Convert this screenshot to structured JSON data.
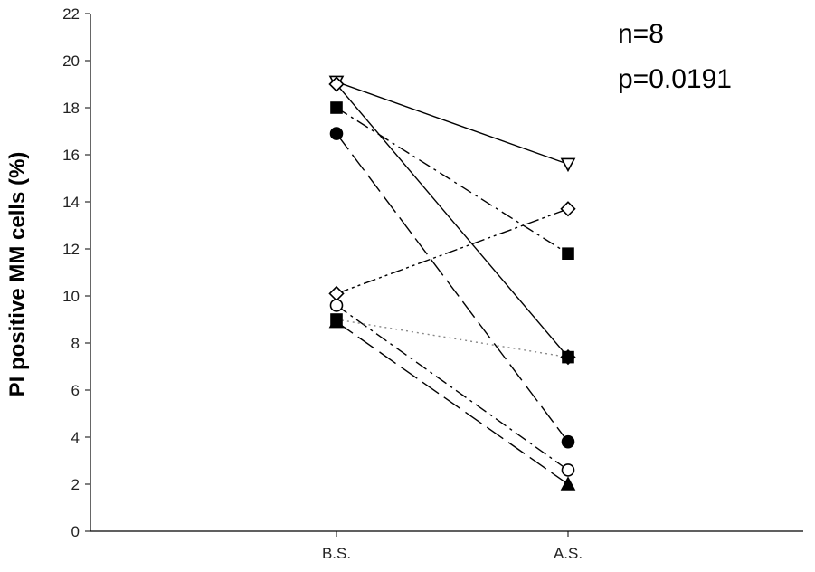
{
  "chart_data": {
    "type": "line",
    "ylabel": "PI positive MM cells (%)",
    "xlabel": "",
    "ylim": [
      0,
      22
    ],
    "yticks": [
      0,
      2,
      4,
      6,
      8,
      10,
      12,
      14,
      16,
      18,
      20,
      22
    ],
    "categories": [
      "B.S.",
      "A.S."
    ],
    "annotations": [
      "n=8",
      "p=0.0191"
    ],
    "grid": false,
    "series": [
      {
        "values": [
          19.1,
          15.6
        ],
        "marker": "triangle-down-open",
        "line": "solid"
      },
      {
        "values": [
          19.0,
          7.4
        ],
        "marker": "diamond-open",
        "line": "solid"
      },
      {
        "values": [
          18.0,
          11.8
        ],
        "marker": "square-filled",
        "line": "dash-dot"
      },
      {
        "values": [
          16.9,
          3.8
        ],
        "marker": "circle-filled",
        "line": "long-dash"
      },
      {
        "values": [
          10.1,
          13.7
        ],
        "marker": "diamond-open",
        "line": "dash-dot-dot"
      },
      {
        "values": [
          9.6,
          2.6
        ],
        "marker": "circle-open",
        "line": "dash-dot"
      },
      {
        "values": [
          9.0,
          7.4
        ],
        "marker": "square-filled",
        "line": "dotted"
      },
      {
        "values": [
          8.9,
          2.0
        ],
        "marker": "triangle-up-filled",
        "line": "long-dash"
      }
    ]
  }
}
